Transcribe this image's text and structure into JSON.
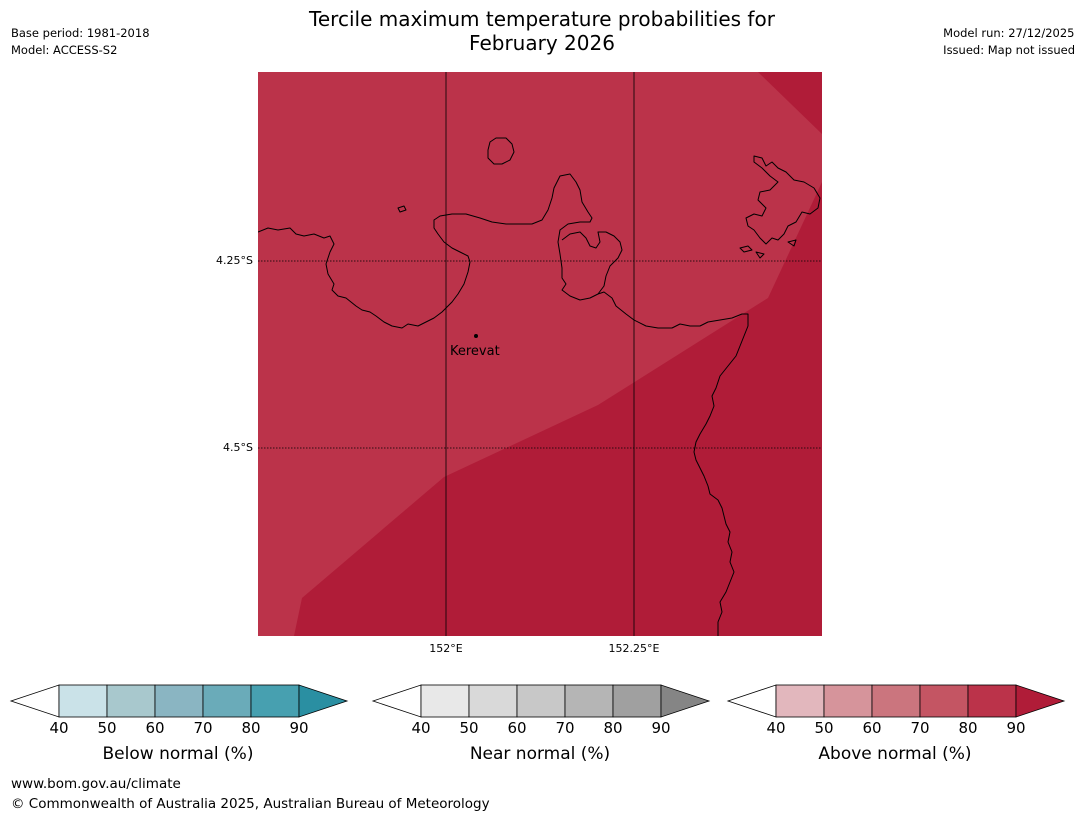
{
  "header": {
    "title_line1": "Tercile maximum temperature probabilities for",
    "title_line2": "February 2026",
    "base_period": "Base period: 1981-2018",
    "model": "Model: ACCESS-S2",
    "model_run": "Model run: 27/12/2025",
    "issued": "Issued: Map not issued"
  },
  "map": {
    "lat_labels": [
      "4.25°S",
      "4.5°S"
    ],
    "lon_labels": [
      "152°E",
      "152.25°E"
    ],
    "place": "Kerevat",
    "category_shown": "Above normal",
    "region_values_pct": {
      "upper_left": "80-90",
      "lower_right": "90+"
    },
    "colors": {
      "region_80_90": "#bb334a",
      "region_90_plus": "#b01c38"
    }
  },
  "colorbars": [
    {
      "label": "Below normal (%)",
      "ticks": [
        "40",
        "50",
        "60",
        "70",
        "80",
        "90"
      ],
      "colors": [
        "#ffffff",
        "#cae2e8",
        "#a8c8cd",
        "#8ab5c2",
        "#6aabb9",
        "#47a0b0",
        "#2a8fa2"
      ]
    },
    {
      "label": "Near normal (%)",
      "ticks": [
        "40",
        "50",
        "60",
        "70",
        "80",
        "90"
      ],
      "colors": [
        "#ffffff",
        "#e8e8e8",
        "#d9d9d9",
        "#c8c8c8",
        "#b5b5b5",
        "#a0a0a0",
        "#858585"
      ]
    },
    {
      "label": "Above normal (%)",
      "ticks": [
        "40",
        "50",
        "60",
        "70",
        "80",
        "90"
      ],
      "colors": [
        "#ffffff",
        "#e2b7bd",
        "#d6949b",
        "#cb757e",
        "#c45563",
        "#bb334a",
        "#b01c38"
      ]
    }
  ],
  "footer": {
    "url": "www.bom.gov.au/climate",
    "copyright": "© Commonwealth of Australia 2025, Australian Bureau of Meteorology"
  }
}
